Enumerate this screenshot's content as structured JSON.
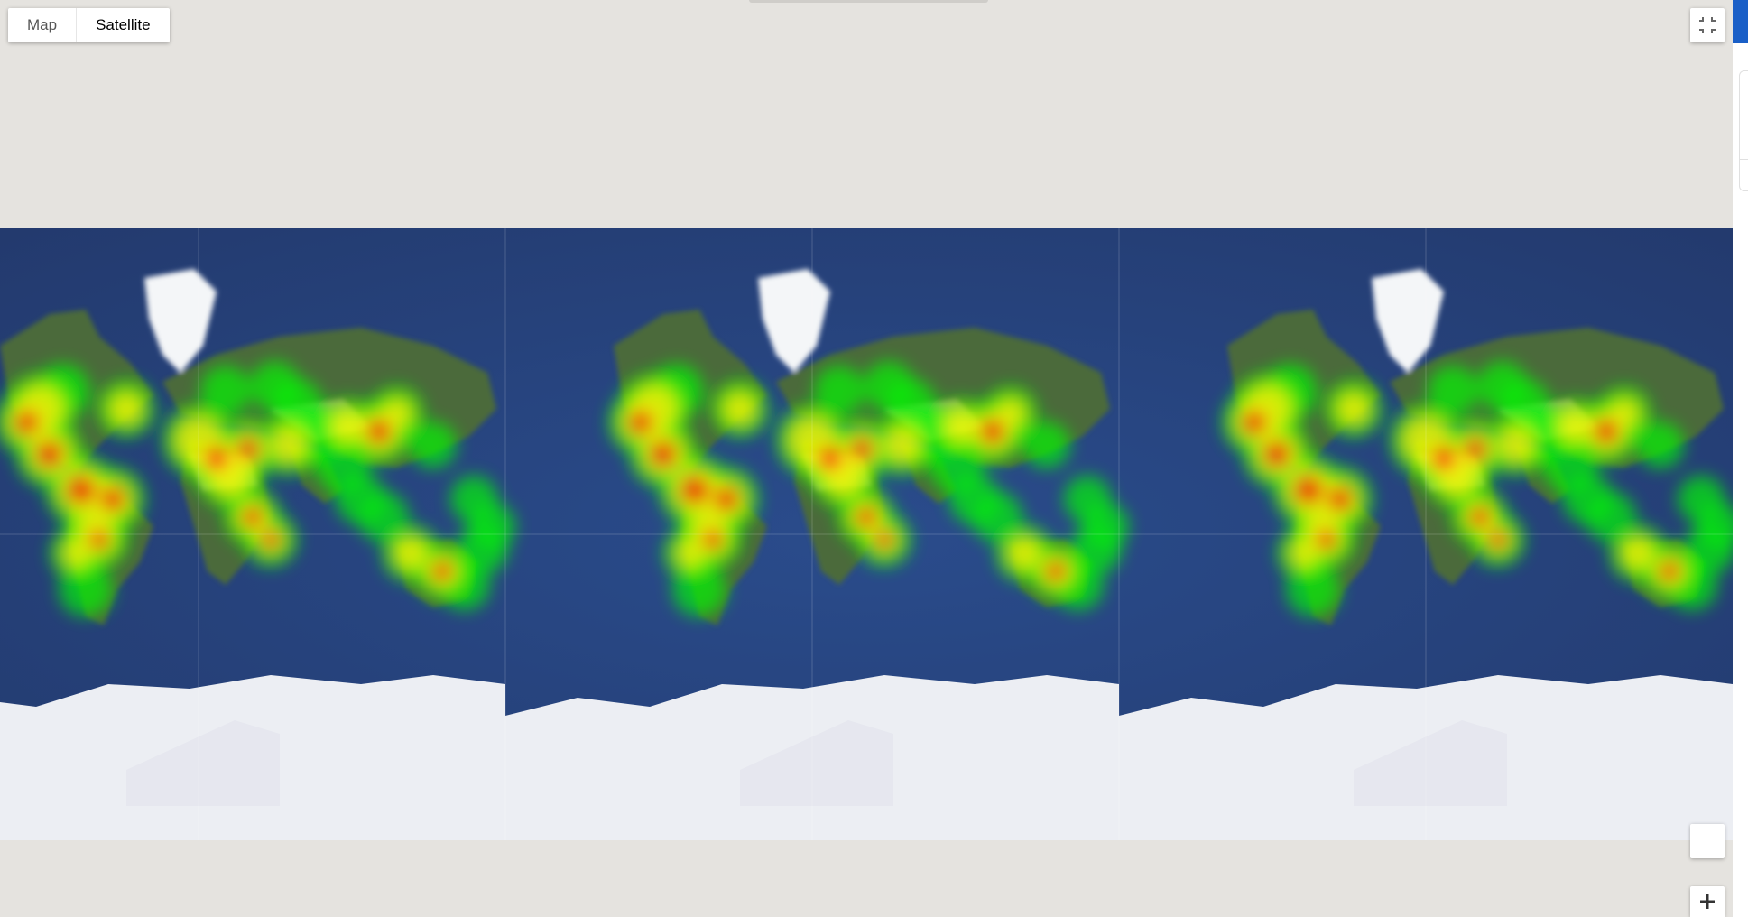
{
  "map_type": {
    "options": [
      {
        "label": "Map",
        "selected": false
      },
      {
        "label": "Satellite",
        "selected": true
      }
    ]
  },
  "controls": {
    "fullscreen_icon": "exit-fullscreen-icon",
    "pegman_icon": "street-view-pegman-icon",
    "zoom_in_icon": "plus-icon"
  },
  "map": {
    "view": "satellite",
    "overlay": "heatmap",
    "world_copies": 3,
    "heatmap_gradient": [
      "#00ff00",
      "#ffff00",
      "#ff0000"
    ],
    "colors": {
      "ocean": "#2c4a85",
      "land": "#4b6b3a",
      "desert": "#b7a283",
      "ice": "#eceef3",
      "background": "#e5e3df",
      "accent": "#1a5fc7"
    }
  }
}
